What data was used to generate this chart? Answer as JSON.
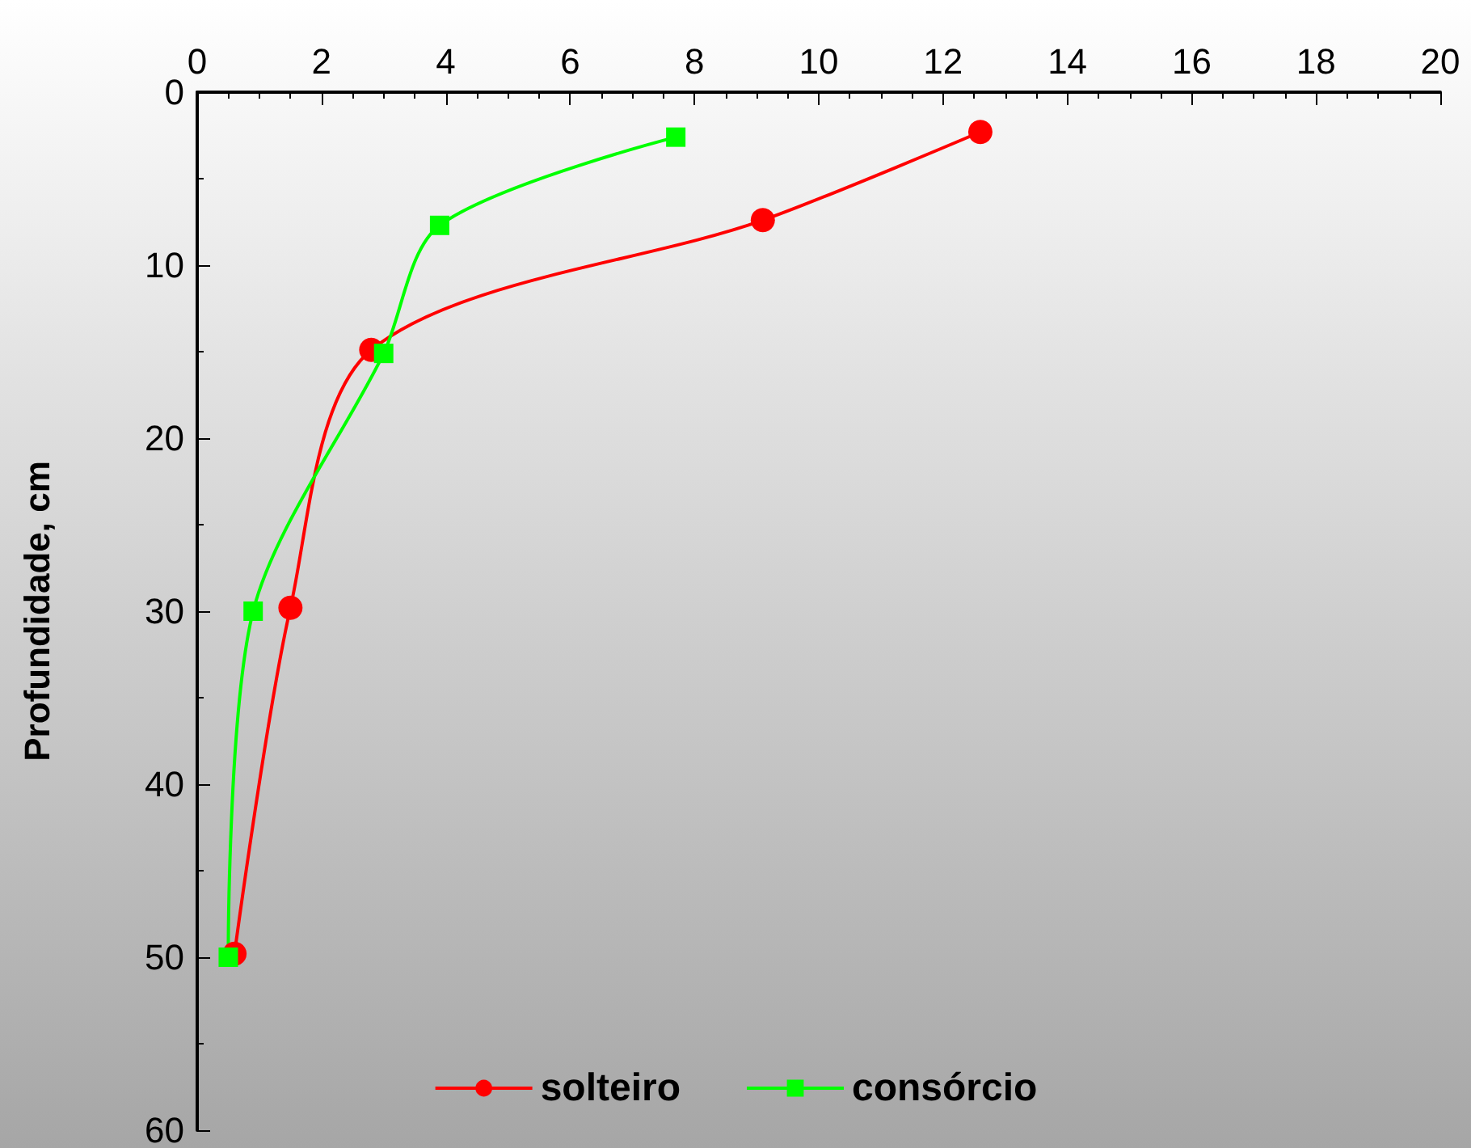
{
  "chart_data": {
    "type": "line",
    "ylabel": "Profundidade, cm",
    "xlim": [
      0,
      20
    ],
    "xticks": [
      0,
      2,
      4,
      6,
      8,
      10,
      12,
      14,
      16,
      18,
      20
    ],
    "ylim": [
      60,
      0
    ],
    "yticks": [
      0,
      10,
      20,
      30,
      40,
      50,
      60
    ],
    "grid": false,
    "legend": "bottom",
    "series": [
      {
        "name": "solteiro",
        "color": "#ff0000",
        "marker": "circle",
        "x": [
          12.6,
          9.1,
          2.8,
          1.5,
          0.6
        ],
        "values": [
          2.3,
          7.4,
          14.9,
          29.8,
          49.8
        ]
      },
      {
        "name": "consórcio",
        "color": "#00ff00",
        "marker": "square",
        "x": [
          7.7,
          3.9,
          3.0,
          0.9,
          0.5
        ],
        "values": [
          2.6,
          7.7,
          15.1,
          30.0,
          50.0
        ]
      }
    ]
  }
}
